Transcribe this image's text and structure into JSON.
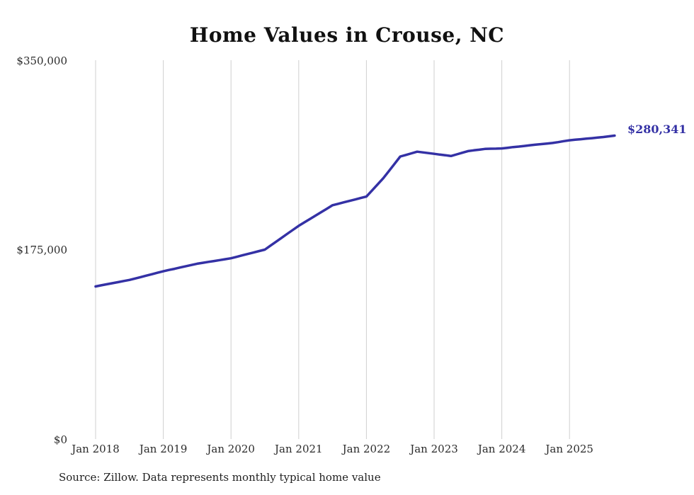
{
  "chart_data": {
    "type": "line",
    "title": "Home Values in Crouse, NC",
    "xlabel": "",
    "ylabel": "",
    "ylim": [
      0,
      350000
    ],
    "grid": "vertical-only",
    "legend": "none",
    "line_color": "#3431a5",
    "gridline_color": "#cfcfcf",
    "x_interval": "monthly",
    "x_start": "2018-01",
    "x_tick_labels": [
      "Jan 2018",
      "Jan 2019",
      "Jan 2020",
      "Jan 2021",
      "Jan 2022",
      "Jan 2023",
      "Jan 2024",
      "Jan 2025"
    ],
    "y_ticks": [
      "$0",
      "$175,000",
      "$350,000"
    ],
    "end_label": "$280,341",
    "source": "Source: Zillow. Data represents monthly typical home value",
    "values": [
      141000,
      142000,
      143000,
      144000,
      145000,
      146000,
      147000,
      148300,
      149600,
      151000,
      152300,
      153700,
      155000,
      156200,
      157300,
      158500,
      159700,
      160800,
      162000,
      162800,
      163700,
      164500,
      165300,
      166200,
      167000,
      168300,
      169700,
      171000,
      172300,
      173700,
      175000,
      178700,
      182300,
      186000,
      189700,
      193300,
      197000,
      200200,
      203300,
      206500,
      209700,
      212800,
      216000,
      217300,
      218700,
      220000,
      221300,
      222700,
      224000,
      229700,
      235300,
      241000,
      247700,
      254300,
      261000,
      262500,
      264000,
      265500,
      264800,
      264200,
      263500,
      262800,
      262200,
      261500,
      263000,
      264500,
      266000,
      266700,
      267300,
      268000,
      268200,
      268300,
      268500,
      269100,
      269700,
      270200,
      270800,
      271400,
      272000,
      272500,
      273000,
      273500,
      274300,
      275200,
      276000,
      276500,
      277000,
      277500,
      278000,
      278500,
      279000,
      279700,
      280341
    ]
  }
}
